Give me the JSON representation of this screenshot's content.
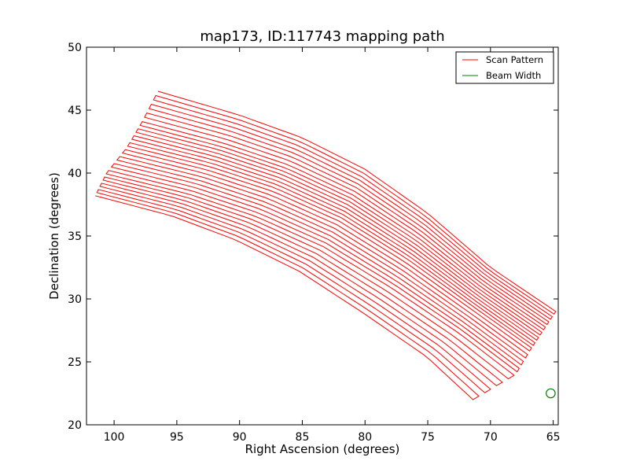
{
  "chart_data": {
    "type": "line",
    "title": "map173, ID:117743 mapping path",
    "xlabel": "Right Ascension (degrees)",
    "ylabel": "Declination (degrees)",
    "xlim": [
      102.2,
      64.6
    ],
    "ylim": [
      20,
      50
    ],
    "x_inverted": true,
    "xticks": [
      100,
      95,
      90,
      85,
      80,
      75,
      70,
      65
    ],
    "yticks": [
      20,
      25,
      30,
      35,
      40,
      45,
      50
    ],
    "grid": false,
    "legend_position": "top-right",
    "series": [
      {
        "name": "Scan Pattern",
        "color": "#ff0000",
        "kind": "boustrophedon-scan",
        "left_edge": [
          [
            101.5,
            38.2
          ],
          [
            100.6,
            40.0
          ],
          [
            99.0,
            42.0
          ],
          [
            97.8,
            44.0
          ],
          [
            96.5,
            46.5
          ]
        ],
        "right_edge": [
          [
            71.4,
            22.0
          ],
          [
            68.0,
            24.0
          ],
          [
            66.8,
            26.0
          ],
          [
            65.8,
            27.5
          ],
          [
            64.8,
            29.0
          ]
        ],
        "top_curve": [
          [
            96.5,
            46.5
          ],
          [
            90.0,
            44.6
          ],
          [
            85.0,
            42.8
          ],
          [
            80.0,
            40.3
          ],
          [
            75.0,
            36.8
          ],
          [
            70.0,
            32.5
          ],
          [
            64.8,
            29.0
          ]
        ],
        "bottom_curve": [
          [
            101.0,
            37.6
          ],
          [
            95.0,
            36.1
          ],
          [
            90.0,
            34.3
          ],
          [
            85.0,
            31.9
          ],
          [
            80.0,
            28.7
          ],
          [
            75.0,
            25.3
          ],
          [
            71.4,
            22.0
          ]
        ],
        "scan_line_count": 30
      },
      {
        "name": "Beam Width",
        "color": "#008000",
        "kind": "circle",
        "center": [
          65.2,
          22.5
        ],
        "radius_deg": 0.36
      }
    ]
  }
}
